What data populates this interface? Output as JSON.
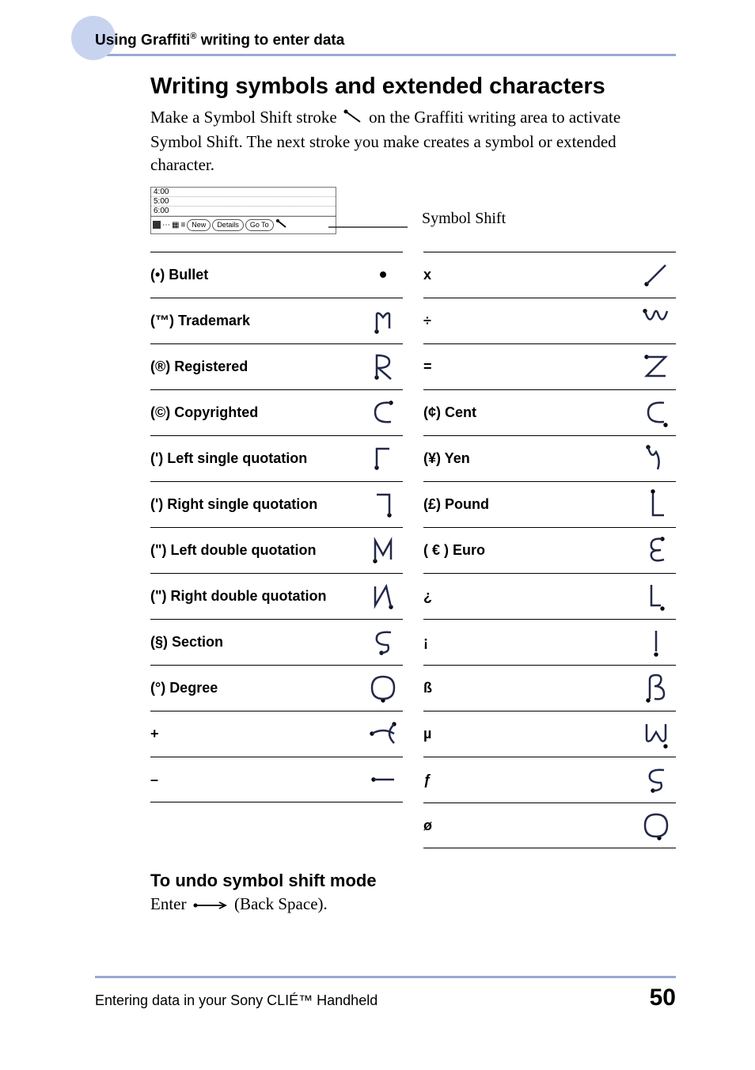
{
  "header": {
    "breadcrumb_pre": "Using Graffiti",
    "breadcrumb_sup": "®",
    "breadcrumb_post": " writing to enter data"
  },
  "title": "Writing symbols and extended characters",
  "intro_pre": "Make a Symbol Shift stroke ",
  "intro_post": " on the Graffiti writing area to activate Symbol Shift. The next stroke you make creates a symbol or extended character.",
  "mini": {
    "t1": "4:00",
    "t2": "5:00",
    "t3": "6:00",
    "new": "New",
    "details": "Details",
    "goto": "Go To"
  },
  "symbol_shift_label": "Symbol Shift",
  "svg": {
    "stroke_dot": "<circle cx='6' cy='6' r='3.5' fill='#000'/>",
    "col_stroke": "#22284a",
    "col_dot": "#000"
  },
  "left": [
    {
      "label": "(•) Bullet",
      "path": "<circle cx='24' cy='24' r='4' fill='#000'/>"
    },
    {
      "label": "(™) Trademark",
      "path": "<circle cx='16' cy='38' r='2.7' fill='#000'/><path d='M16 38 L16 16 Q18 12 24 20 Q30 12 32 16 L32 34' fill='none' stroke='#22284a' stroke-width='2.5'/>"
    },
    {
      "label": "(®) Registered",
      "path": "<circle cx='16' cy='38' r='2.7' fill='#000'/><path d='M16 38 L16 10 Q32 10 32 18 Q32 26 18 26 L34 40' fill='none' stroke='#22284a' stroke-width='2.5'/>"
    },
    {
      "label": "(©) Copyrighted",
      "path": "<circle cx='34' cy='12' r='2.7' fill='#000'/><path d='M34 12 Q14 10 14 24 Q14 38 34 36' fill='none' stroke='#22284a' stroke-width='2.5'/>"
    },
    {
      "label": "(') Left single quotation",
      "path": "<circle cx='16' cy='36' r='2.7' fill='#000'/><path d='M16 36 L16 12 L32 12' fill='none' stroke='#22284a' stroke-width='2.5'/>"
    },
    {
      "label": "(') Right single quotation",
      "path": "<circle cx='32' cy='38' r='2.7' fill='#000'/><path d='M16 12 L32 12 L32 38' fill='none' stroke='#22284a' stroke-width='2.5'/>"
    },
    {
      "label": "(\") Left double quotation",
      "path": "<circle cx='14' cy='38' r='2.7' fill='#000'/><path d='M14 38 L14 12 L24 30 L34 12 L34 36' fill='none' stroke='#22284a' stroke-width='2.5'/>"
    },
    {
      "label": "(\") Right double quotation",
      "path": "<circle cx='34' cy='38' r='2.7' fill='#000'/><path d='M14 12 L14 36 L28 12 L34 38' fill='none' stroke='#22284a' stroke-width='2.5'/>"
    },
    {
      "label": "(§) Section",
      "path": "<circle cx='22' cy='38' r='2.7' fill='#000'/><path d='M34 12 Q14 10 16 22 Q18 28 30 28 Q34 38 20 38' fill='none' stroke='#22284a' stroke-width='2.5'/>"
    },
    {
      "label": "(°) Degree",
      "path": "<circle cx='24' cy='40' r='2.7' fill='#000'/><path d='M24 10 Q10 10 10 24 Q10 38 24 38 Q38 38 38 24 Q38 10 24 10' fill='none' stroke='#22284a' stroke-width='2.5'/>"
    },
    {
      "label": "+",
      "path": "<circle cx='38' cy='12' r='2.7' fill='#000'/><circle cx='10' cy='24' r='2.7' fill='#000'/><path d='M10 24 Q24 16 38 24 M38 12 Q26 24 38 36' fill='none' stroke='#22284a' stroke-width='2.5'/>"
    },
    {
      "label": "–",
      "path": "<circle cx='12' cy='24' r='2.7' fill='#000'/><path d='M12 24 L38 24' fill='none' stroke='#22284a' stroke-width='2.5'/>"
    }
  ],
  "right": [
    {
      "label": "x",
      "path": "<circle cx='12' cy='36' r='2.7' fill='#000'/><path d='M12 36 L36 12' fill='none' stroke='#22284a' stroke-width='2.5'/>"
    },
    {
      "label": "÷",
      "path": "<circle cx='10' cy='12' r='2.7' fill='#000'/><path d='M10 12 Q16 32 22 14 Q24 10 26 14 Q32 32 38 12' fill='none' stroke='#22284a' stroke-width='2.5'/>"
    },
    {
      "label": "=",
      "path": "<circle cx='12' cy='12' r='2.7' fill='#000'/><path d='M12 12 L36 12 L12 36 L36 36' fill='none' stroke='#22284a' stroke-width='2.5'/>"
    },
    {
      "label": "(¢) Cent",
      "path": "<circle cx='36' cy='40' r='2.7' fill='#000'/><path d='M34 12 Q14 10 14 24 Q14 38 34 36' fill='none' stroke='#22284a' stroke-width='2.5'/>"
    },
    {
      "label": "(¥) Yen",
      "path": "<circle cx='14' cy='10' r='2.7' fill='#000'/><path d='M14 10 Q18 26 24 16 Q30 26 26 38' fill='none' stroke='#22284a' stroke-width='2.5'/>"
    },
    {
      "label": "(£) Pound",
      "path": "<circle cx='20' cy='8' r='2.7' fill='#000'/><path d='M20 10 L20 38 L34 38' fill='none' stroke='#22284a' stroke-width='2.5'/>"
    },
    {
      "label": "( € ) Euro",
      "path": "<circle cx='32' cy='10' r='2.7' fill='#000'/><path d='M32 10 Q16 8 18 20 Q20 26 30 24 Q16 24 18 32 Q20 40 34 36' fill='none' stroke='#22284a' stroke-width='2.5'/>"
    },
    {
      "label": "¿",
      "path": "<circle cx='32' cy='40' r='2.7' fill='#000'/><path d='M18 10 L18 36 L30 36' fill='none' stroke='#22284a' stroke-width='2.5'/>"
    },
    {
      "label": "¡",
      "path": "<circle cx='24' cy='40' r='2.7' fill='#000'/><path d='M24 10 L24 36' fill='none' stroke='#22284a' stroke-width='2.5'/>"
    },
    {
      "label": "ß",
      "path": "<circle cx='14' cy='40' r='2.7' fill='#000'/><path d='M16 38 L16 14 Q16 8 24 8 Q32 8 30 16 Q28 22 22 22 Q34 22 34 32 Q34 40 22 38' fill='none' stroke='#22284a' stroke-width='2.5'/>"
    },
    {
      "label": "µ",
      "path": "<circle cx='36' cy='40' r='2.7' fill='#000'/><path d='M12 12 L12 30 Q12 36 18 32 L24 22 L30 32 Q34 36 36 30 L36 12' fill='none' stroke='#22284a' stroke-width='2.5'/>"
    },
    {
      "label": "ƒ",
      "path": "<circle cx='20' cy='38' r='2.7' fill='#000'/><path d='M34 12 Q14 10 16 22 Q18 28 30 28 Q34 38 20 38' fill='none' stroke='#22284a' stroke-width='2.5'/>"
    },
    {
      "label": "ø",
      "path": "<circle cx='28' cy='40' r='2.7' fill='#000'/><path d='M24 10 Q10 10 10 24 Q10 38 24 38 Q38 38 38 24 Q38 10 24 10' fill='none' stroke='#22284a' stroke-width='2.5'/>"
    }
  ],
  "undo_heading": "To undo symbol shift mode",
  "undo_pre": "Enter ",
  "undo_post": " (Back Space).",
  "footer": {
    "text": "Entering data in your Sony CLIÉ™ Handheld",
    "page": "50"
  }
}
